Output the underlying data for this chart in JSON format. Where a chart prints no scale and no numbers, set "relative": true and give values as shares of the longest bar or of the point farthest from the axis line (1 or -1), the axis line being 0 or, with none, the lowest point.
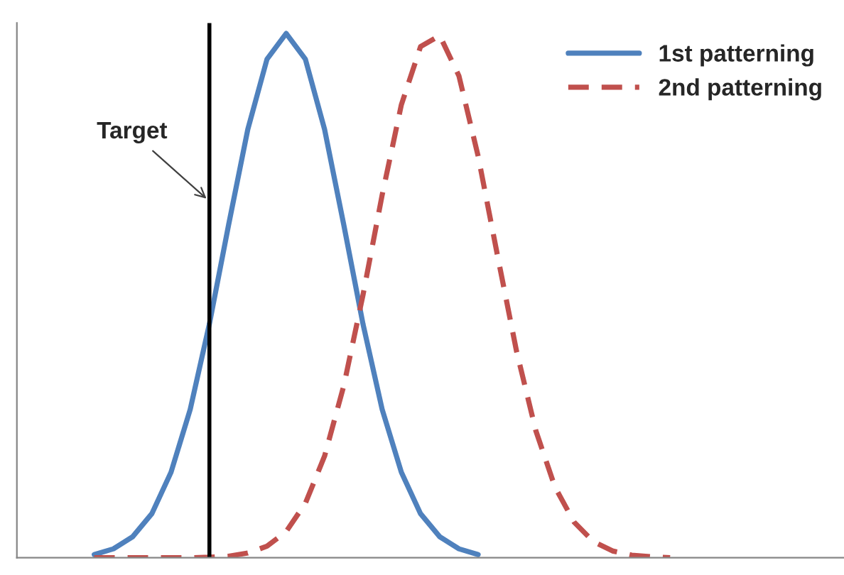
{
  "chart_data": {
    "type": "line",
    "relative": true,
    "categories": [
      null,
      null,
      null,
      null,
      null,
      null,
      null,
      null,
      null,
      null,
      null,
      null,
      null,
      null,
      null,
      null,
      null,
      null,
      null,
      null,
      null,
      null,
      null,
      null,
      null,
      null,
      null,
      null,
      null,
      null,
      null
    ],
    "grid": false,
    "legend": "top right",
    "marker": "none",
    "series": [
      {
        "name": "1st patterning",
        "color": "#4f81bd",
        "line_style": "solid",
        "values": [
          0.006,
          0.017,
          0.04,
          0.084,
          0.163,
          0.283,
          0.446,
          0.635,
          0.817,
          0.951,
          1.0,
          0.951,
          0.817,
          0.635,
          0.446,
          0.283,
          0.163,
          0.084,
          0.04,
          0.017,
          0.006,
          null,
          null,
          null,
          null,
          null,
          null,
          null,
          null,
          null,
          null
        ]
      },
      {
        "name": "2nd patterning",
        "color": "#c0504d",
        "line_style": "dashed",
        "values": [
          0,
          0,
          0,
          0,
          0,
          0,
          0.001,
          0.003,
          0.009,
          0.022,
          0.05,
          0.104,
          0.194,
          0.328,
          0.501,
          0.692,
          0.864,
          0.975,
          0.996,
          0.919,
          0.766,
          0.578,
          0.394,
          0.243,
          0.135,
          0.068,
          0.031,
          0.013,
          0.005,
          0.002,
          0
        ]
      }
    ],
    "annotations": [
      "Target"
    ]
  }
}
